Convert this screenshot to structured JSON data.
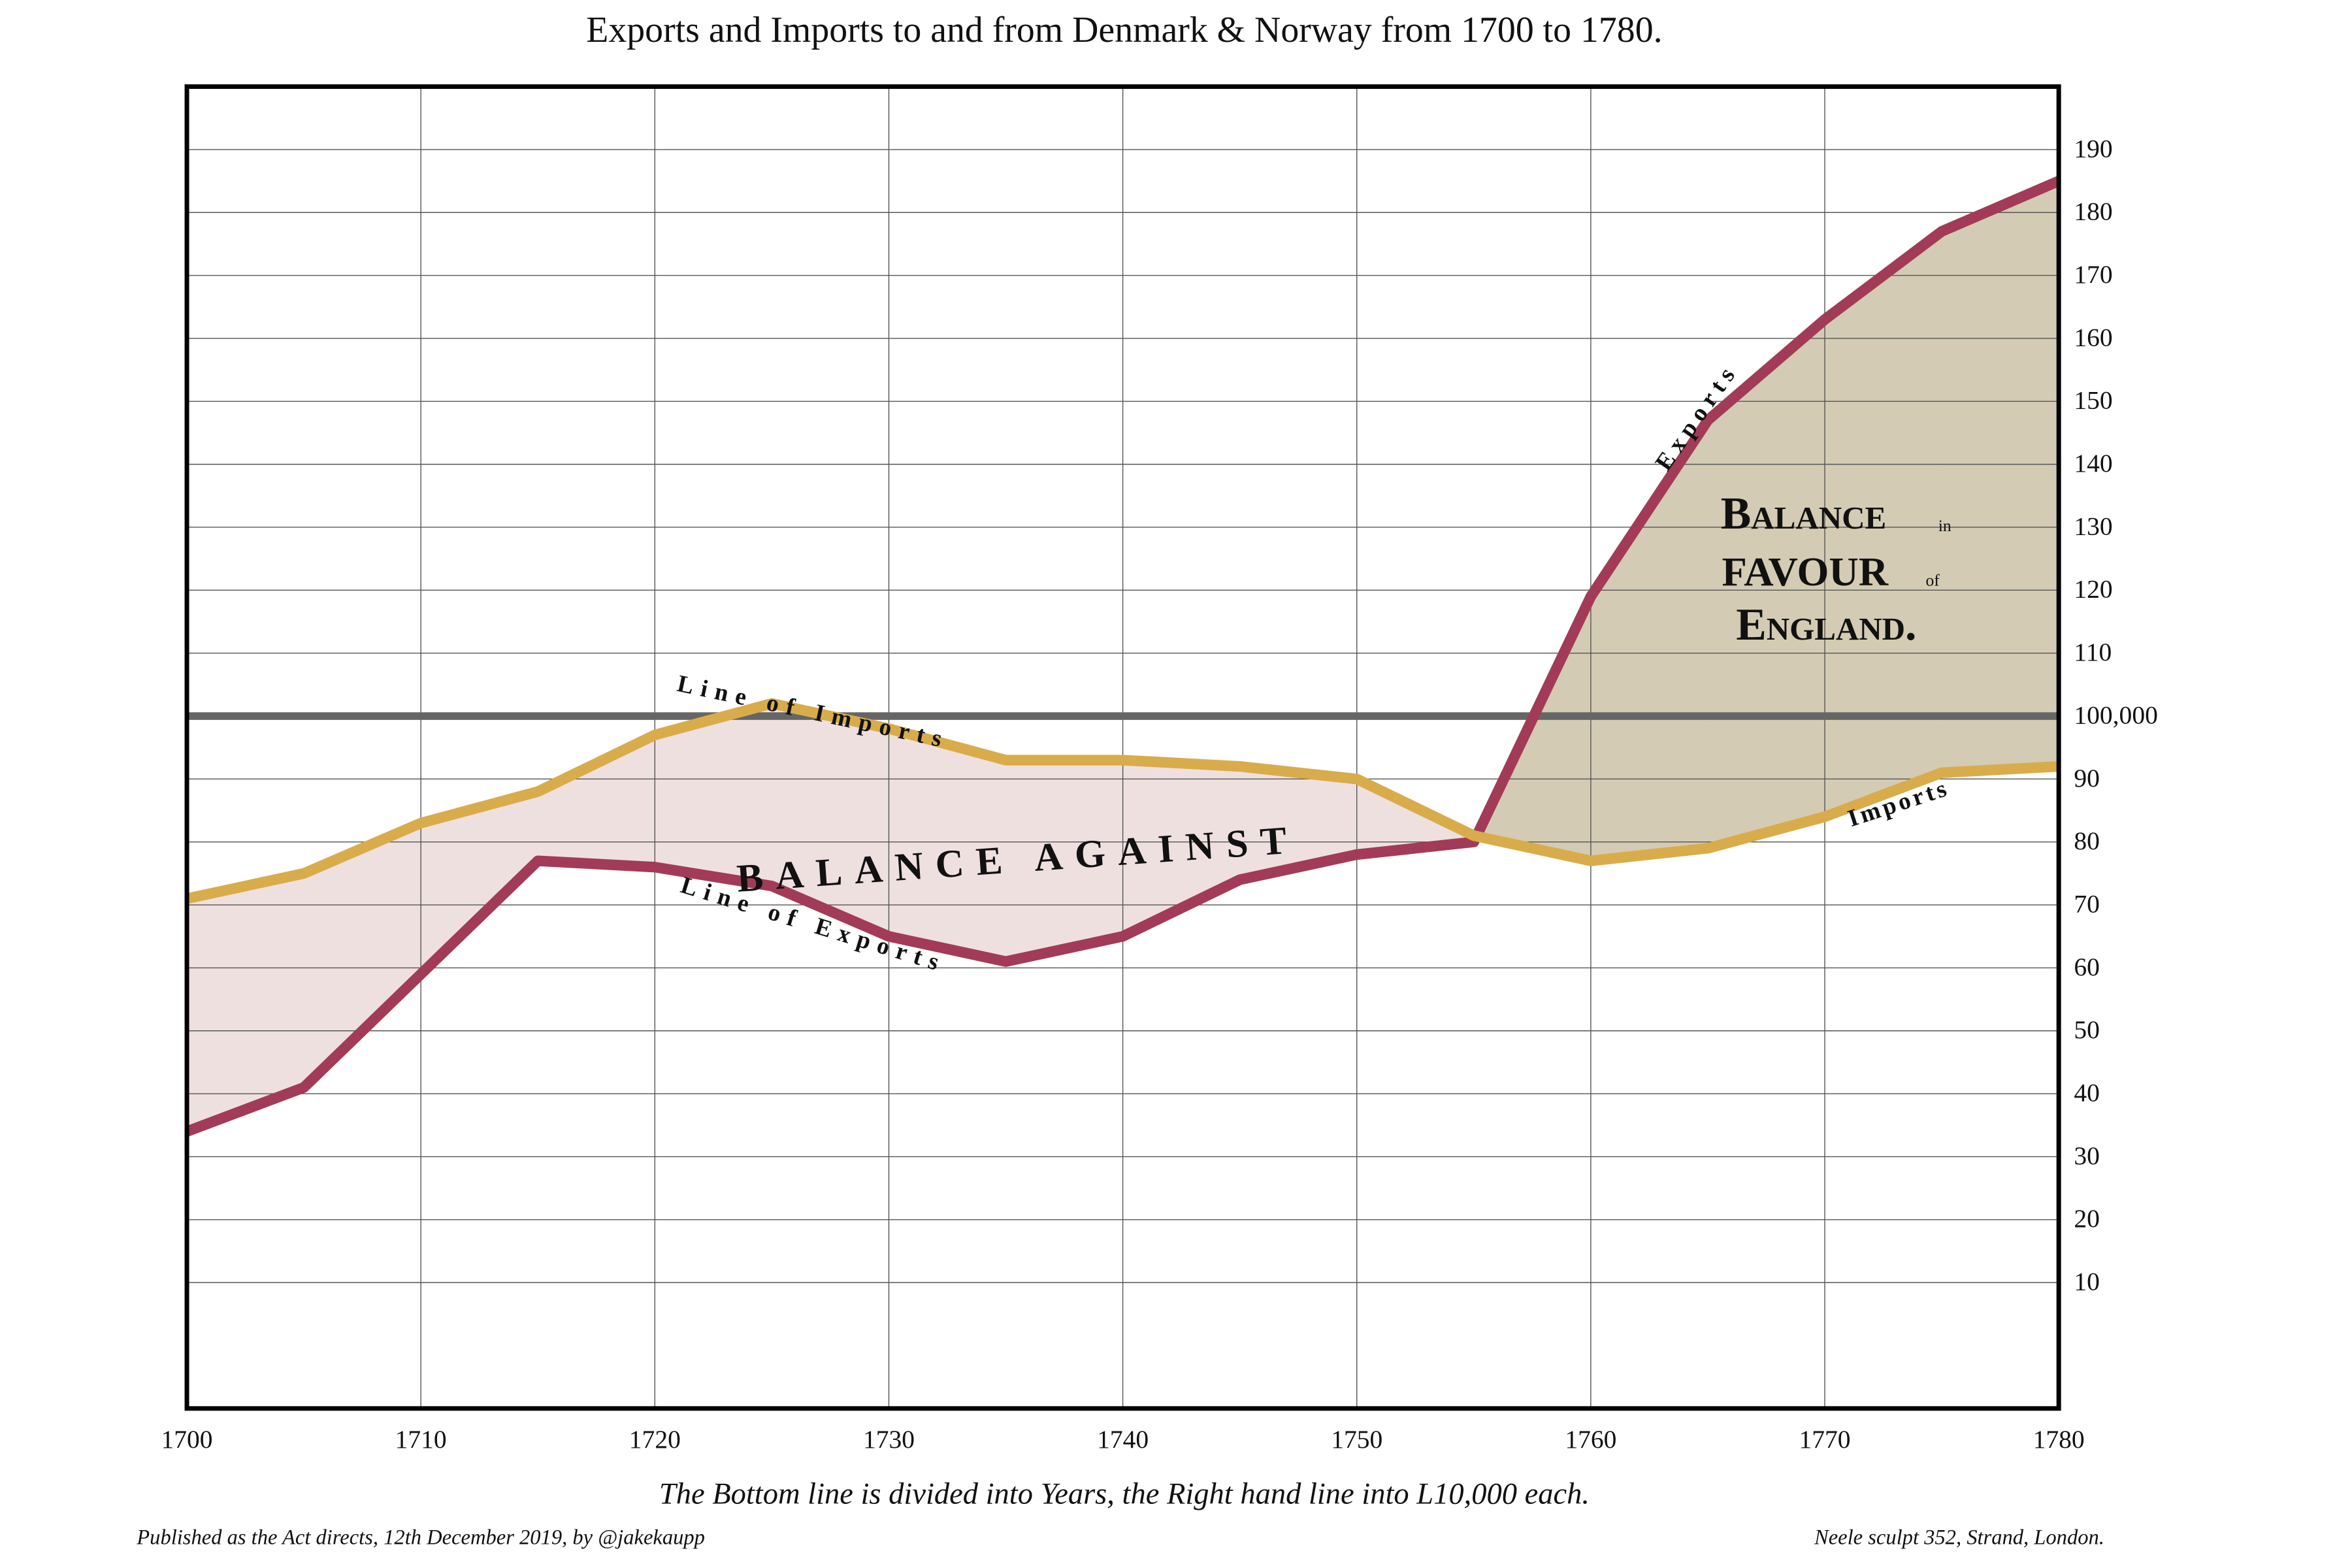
{
  "chart_data": {
    "type": "line",
    "title": "Exports and Imports to and from Denmark & Norway from 1700 to 1780.",
    "xlabel": "The Bottom line is divided into Years, the Right hand line into L10,000 each.",
    "credit_left": "Published as the Act directs, 12th December 2019, by @jakekaupp",
    "credit_right": "Neele sculpt 352, Strand, London.",
    "x": [
      1700,
      1705,
      1710,
      1715,
      1720,
      1725,
      1730,
      1735,
      1740,
      1745,
      1750,
      1755,
      1760,
      1765,
      1770,
      1775,
      1780
    ],
    "series": [
      {
        "name": "Exports",
        "color": "#a23b57",
        "values": [
          34,
          41,
          59,
          77,
          76,
          73,
          65,
          61,
          65,
          74,
          78,
          80,
          119,
          147,
          163,
          177,
          185
        ]
      },
      {
        "name": "Imports",
        "color": "#d9ac4b",
        "values": [
          71,
          75,
          83,
          88,
          97,
          102,
          98,
          93,
          93,
          92,
          90,
          81,
          77,
          79,
          84,
          91,
          92
        ]
      }
    ],
    "fill_against": "#efe0e0",
    "fill_favour": "#d3cbb3",
    "hline": 100,
    "xlim": [
      1700,
      1780
    ],
    "xticks": [
      1700,
      1710,
      1720,
      1730,
      1740,
      1750,
      1760,
      1770,
      1780
    ],
    "ylim": [
      -10,
      200
    ],
    "yticks": [
      10,
      20,
      30,
      40,
      50,
      60,
      70,
      80,
      90,
      {
        "value": 100,
        "label": "100,000"
      },
      110,
      120,
      130,
      140,
      150,
      160,
      170,
      180,
      190
    ],
    "grid": true,
    "annotations": [
      "Line of Imports",
      "Line of Exports",
      "BALANCE AGAINST",
      "Exports",
      "Imports",
      "Balance",
      "in",
      "Favour",
      "of",
      "England."
    ]
  }
}
